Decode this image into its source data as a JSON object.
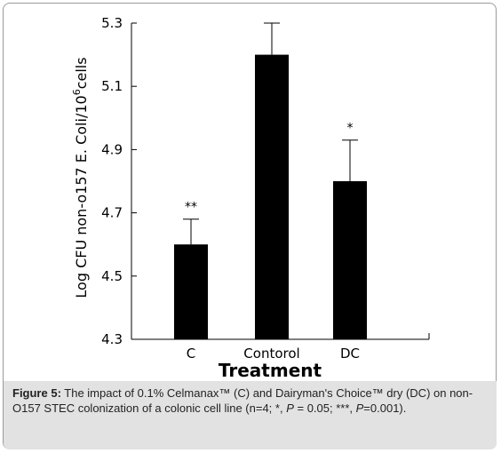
{
  "chart_data": {
    "type": "bar",
    "categories": [
      "C",
      "Contorol",
      "DC"
    ],
    "values": [
      4.6,
      5.2,
      4.8
    ],
    "error_upper": [
      4.68,
      5.3,
      4.93
    ],
    "significance": [
      "**",
      "",
      "*"
    ],
    "xlabel": "Treatment",
    "ylabel_main": "Log CFU non-o157 E. Coli/10",
    "ylabel_sup": "6",
    "ylabel_end": "cells",
    "ylim": [
      4.3,
      5.3
    ],
    "yticks": [
      "4.3",
      "4.5",
      "4.7",
      "4.9",
      "5.1",
      "5.3"
    ],
    "bar_color": "#000000",
    "grid": false
  },
  "caption": {
    "label": "Figure 5:",
    "text": " The impact of 0.1% Celmanax™ (C) and Dairyman's Choice™ dry (DC) on non-O157 STEC colonization of a colonic cell line (n=4; *, ",
    "p1_italic": "P",
    "p1_rest": " = 0.05; ***, ",
    "p2_italic": "P",
    "p2_rest": "=0.001)."
  }
}
